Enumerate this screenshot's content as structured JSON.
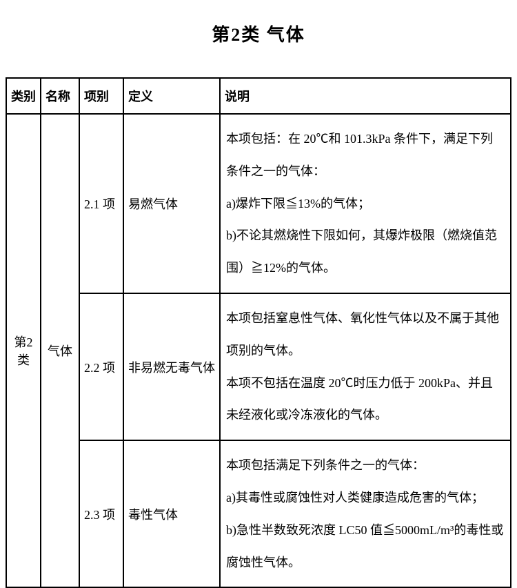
{
  "title": "第2类 气体",
  "headers": {
    "category": "类别",
    "name": "名称",
    "item": "项别",
    "definition": "定义",
    "description": "说明"
  },
  "body": {
    "category": "第2类",
    "name": "气体",
    "rows": [
      {
        "item": "2.1 项",
        "definition": "易燃气体",
        "desc": [
          "本项包括：在 20℃和 101.3kPa 条件下，满足下列条件之一的气体：",
          "a)爆炸下限≦13%的气体；",
          "b)不论其燃烧性下限如何，其爆炸极限（燃烧值范围）≧12%的气体。"
        ]
      },
      {
        "item": "2.2 项",
        "definition": "非易燃无毒气体",
        "desc": [
          "本项包括窒息性气体、氧化性气体以及不属于其他项别的气体。",
          "本项不包括在温度 20℃时压力低于 200kPa、并且未经液化或冷冻液化的气体。"
        ]
      },
      {
        "item": "2.3 项",
        "definition": "毒性气体",
        "desc": [
          "本项包括满足下列条件之一的气体：",
          "a)其毒性或腐蚀性对人类健康造成危害的气体；",
          "b)急性半数致死浓度 LC50 值≦5000mL/m³的毒性或腐蚀性气体。"
        ]
      }
    ]
  }
}
